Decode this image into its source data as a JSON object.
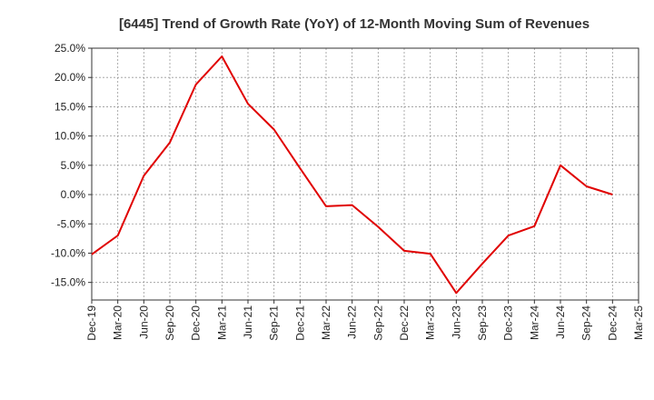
{
  "chart_data": {
    "type": "line",
    "title": "[6445]  Trend of Growth Rate (YoY) of 12-Month Moving Sum of Revenues",
    "xlabel": "",
    "ylabel": "",
    "x": [
      "Dec-19",
      "Mar-20",
      "Jun-20",
      "Sep-20",
      "Dec-20",
      "Mar-21",
      "Jun-21",
      "Sep-21",
      "Dec-21",
      "Mar-22",
      "Jun-22",
      "Sep-22",
      "Dec-22",
      "Mar-23",
      "Jun-23",
      "Sep-23",
      "Dec-23",
      "Mar-24",
      "Jun-24",
      "Sep-24",
      "Dec-24",
      "Mar-25"
    ],
    "x_tick_labels": [
      "Dec-19",
      "Mar-20",
      "Jun-20",
      "Sep-20",
      "Dec-20",
      "Mar-21",
      "Jun-21",
      "Sep-21",
      "Dec-21",
      "Mar-22",
      "Jun-22",
      "Sep-22",
      "Dec-22",
      "Mar-23",
      "Jun-23",
      "Sep-23",
      "Dec-23",
      "Mar-24",
      "Jun-24",
      "Sep-24",
      "Dec-24",
      "Mar-25"
    ],
    "series": [
      {
        "color": "#e00000",
        "values": [
          -10.2,
          -7.0,
          3.2,
          8.9,
          18.8,
          23.6,
          15.5,
          11.1,
          4.5,
          -2.0,
          -1.8,
          -5.5,
          -9.6,
          -10.1,
          -16.8,
          -11.8,
          -7.0,
          -5.4,
          5.0,
          1.4,
          0.0,
          null
        ]
      }
    ],
    "ylim": [
      -18.0,
      25.0
    ],
    "y_ticks": [
      25.0,
      20.0,
      15.0,
      10.0,
      5.0,
      0.0,
      -5.0,
      -10.0,
      -15.0
    ],
    "y_tick_labels": [
      "25.0%",
      "20.0%",
      "15.0%",
      "10.0%",
      "5.0%",
      "0.0%",
      "-5.0%",
      "-10.0%",
      "-15.0%"
    ],
    "grid": true,
    "legend": "none",
    "colors": {
      "line": "#e00000",
      "grid": "#999999",
      "frame": "#333333"
    }
  }
}
